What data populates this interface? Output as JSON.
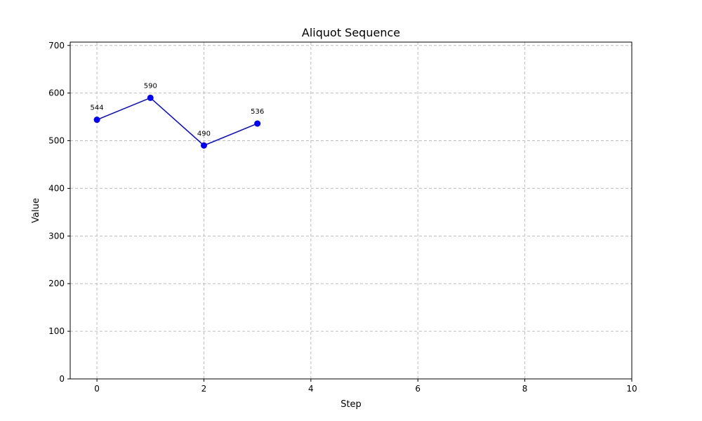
{
  "chart_data": {
    "type": "line",
    "title": "Aliquot Sequence",
    "xlabel": "Step",
    "ylabel": "Value",
    "xlim": [
      -0.5,
      10
    ],
    "ylim": [
      0,
      707
    ],
    "xticks": [
      0,
      2,
      4,
      6,
      8,
      10
    ],
    "yticks": [
      0,
      100,
      200,
      300,
      400,
      500,
      600,
      700
    ],
    "grid": true,
    "grid_style": "dashed",
    "series": [
      {
        "x": [
          0,
          1,
          2,
          3
        ],
        "values": [
          544,
          590,
          490,
          536
        ],
        "labels": [
          "544",
          "590",
          "490",
          "536"
        ],
        "color": "#0000ff",
        "marker": "circle"
      }
    ]
  }
}
